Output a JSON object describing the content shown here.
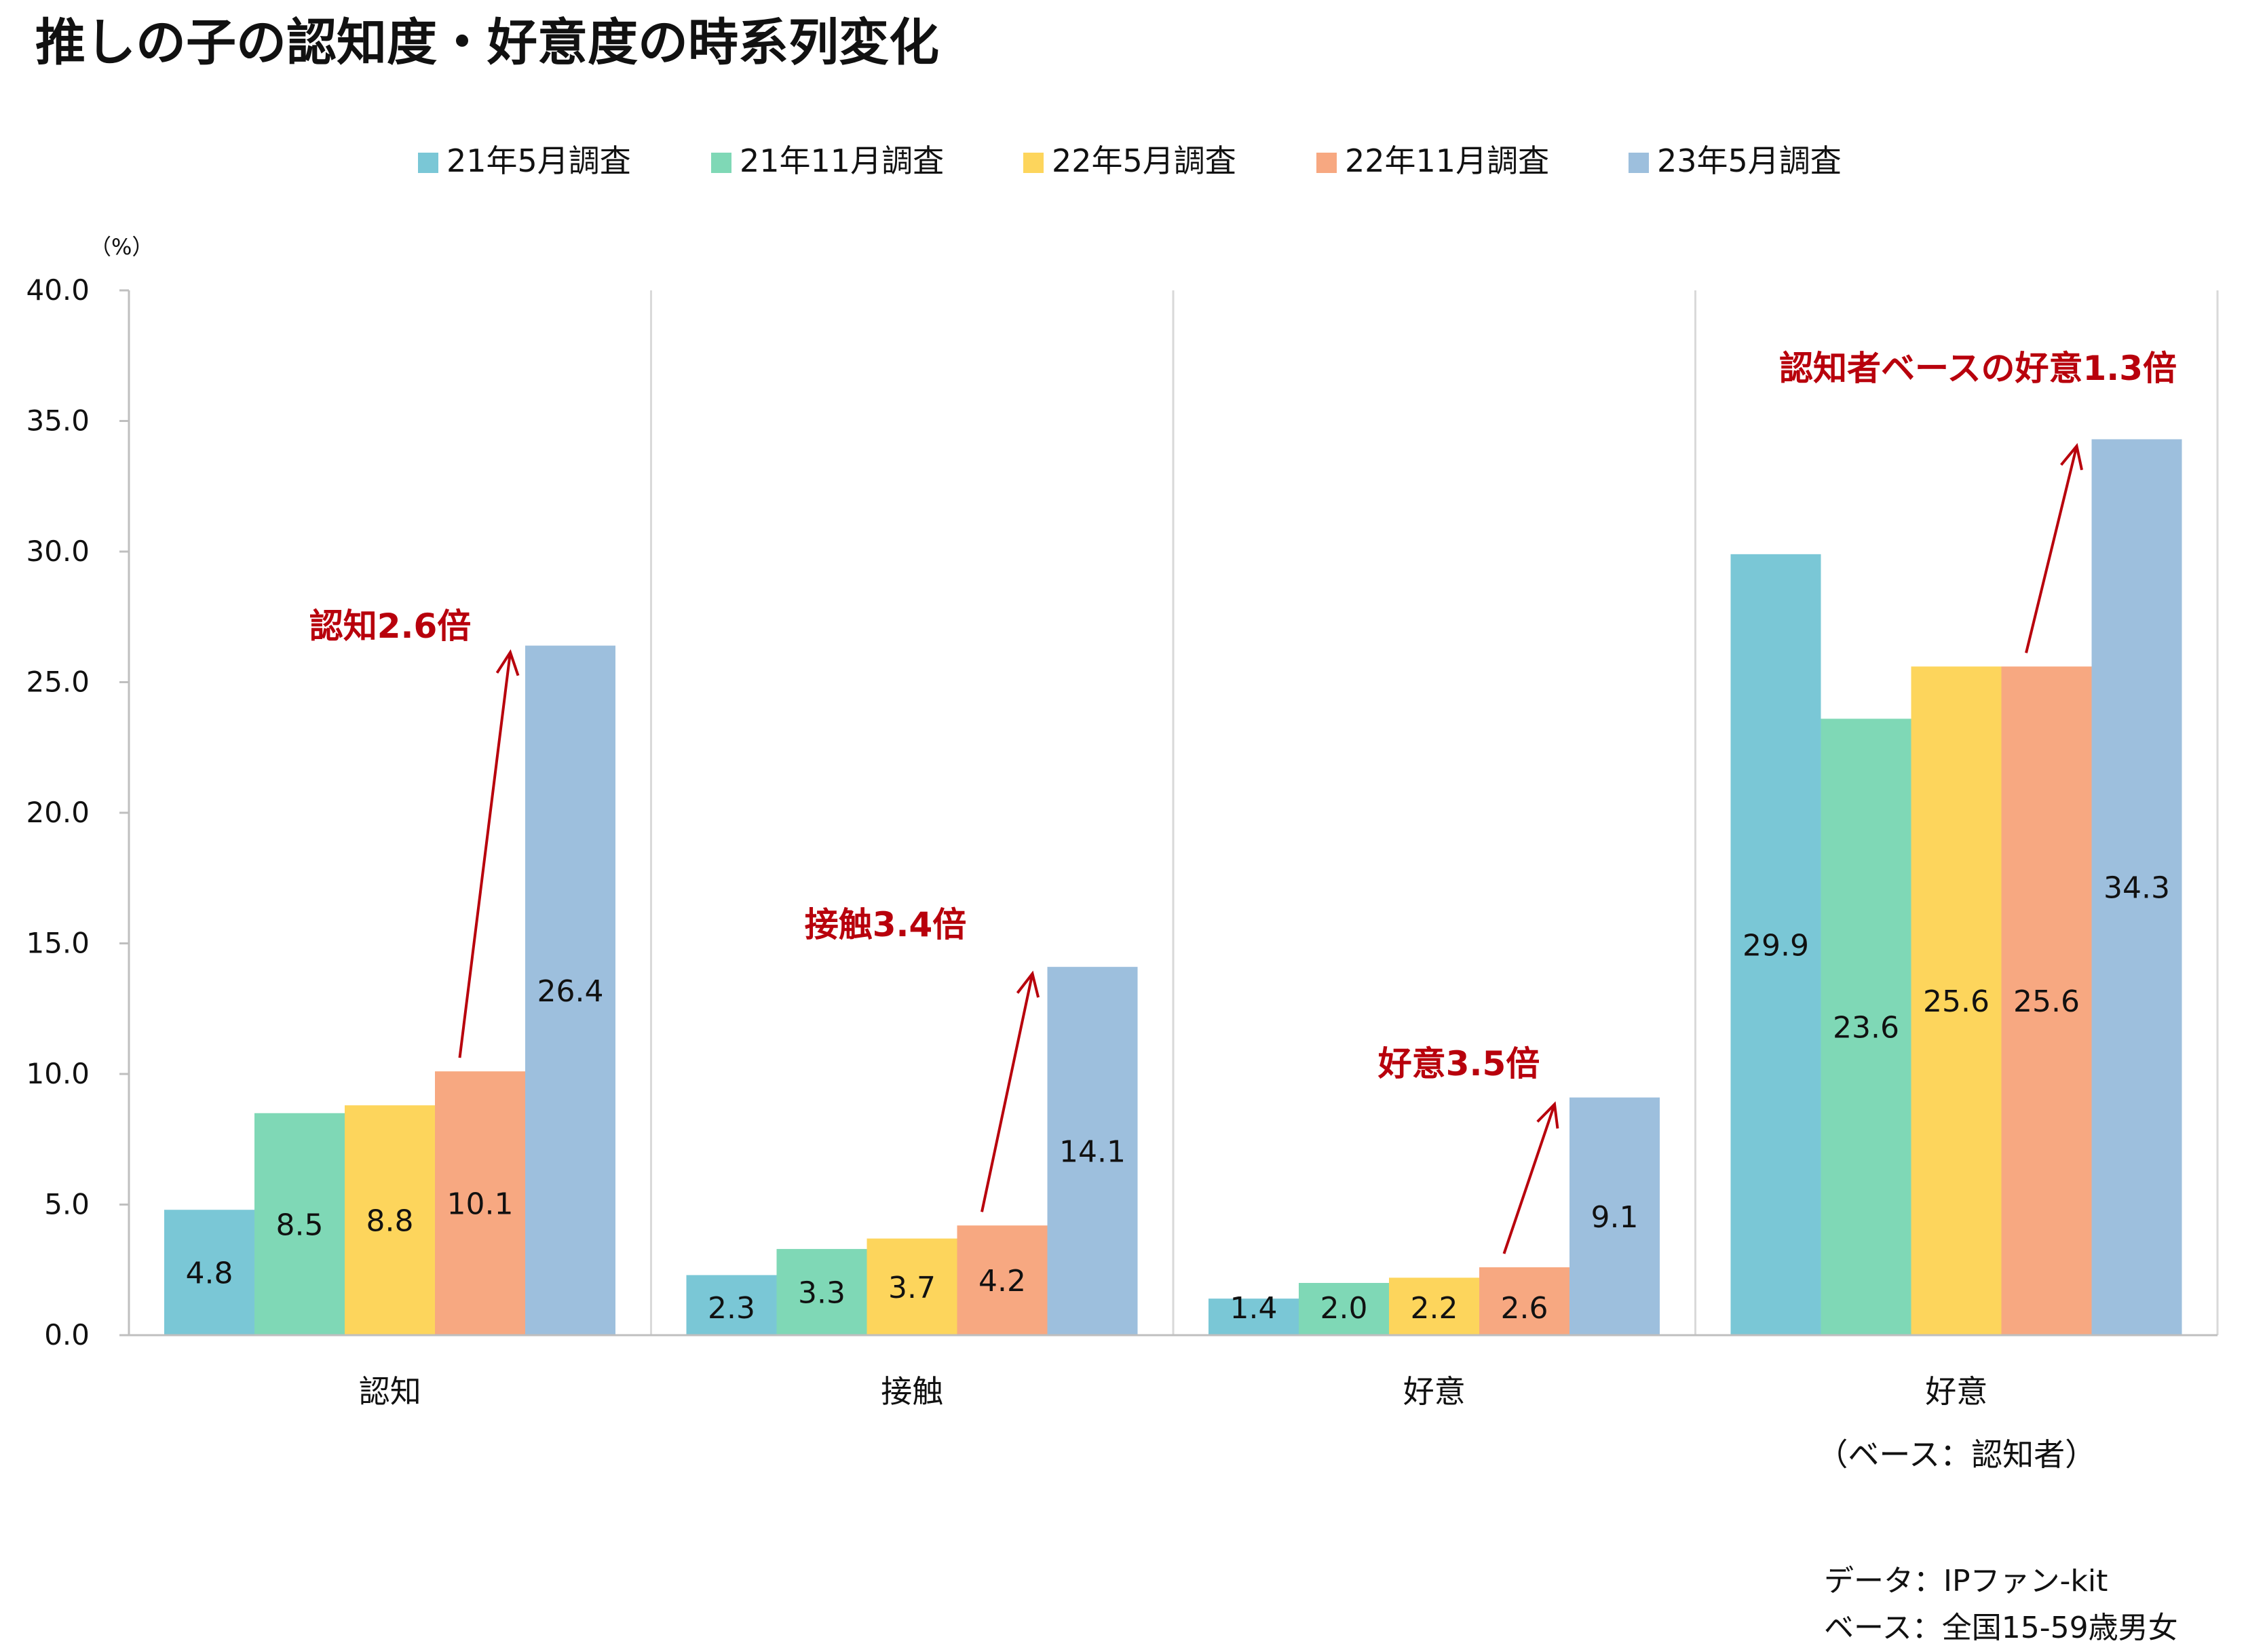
{
  "colors": {
    "series": [
      "#7ac7d6",
      "#7fd8b6",
      "#fdd55c",
      "#f7a881",
      "#9dbfdd"
    ],
    "annotation": "#b8000c",
    "axis": "#bfbfbf",
    "separator": "#d9d9d9",
    "text": "#111111"
  },
  "chart_data": {
    "type": "bar",
    "title": "推しの子の認知度・好意度の時系列変化",
    "unit_label": "（%）",
    "ylim": [
      0,
      40
    ],
    "yticks": [
      "0.0",
      "5.0",
      "10.0",
      "15.0",
      "20.0",
      "25.0",
      "30.0",
      "35.0",
      "40.0"
    ],
    "grid": false,
    "legend_position": "top",
    "categories": [
      "認知",
      "接触",
      "好意",
      "好意"
    ],
    "category_sublabels": [
      "",
      "",
      "",
      "（ベース：認知者）"
    ],
    "series": [
      {
        "name": "21年5月調査",
        "values": [
          4.8,
          2.3,
          1.4,
          29.9
        ]
      },
      {
        "name": "21年11月調査",
        "values": [
          8.5,
          3.3,
          2.0,
          23.6
        ]
      },
      {
        "name": "22年5月調査",
        "values": [
          8.8,
          3.7,
          2.2,
          25.6
        ]
      },
      {
        "name": "22年11月調査",
        "values": [
          10.1,
          4.2,
          2.6,
          25.6
        ]
      },
      {
        "name": "23年5月調査",
        "values": [
          26.4,
          14.1,
          9.1,
          34.3
        ]
      }
    ],
    "value_labels": [
      [
        "4.8",
        "2.3",
        "1.4",
        "29.9"
      ],
      [
        "8.5",
        "3.3",
        "2.0",
        "23.6"
      ],
      [
        "8.8",
        "3.7",
        "2.2",
        "25.6"
      ],
      [
        "10.1",
        "4.2",
        "2.6",
        "25.6"
      ],
      [
        "26.4",
        "14.1",
        "9.1",
        "34.3"
      ]
    ],
    "annotations": [
      {
        "group": 0,
        "text": "認知2.6倍"
      },
      {
        "group": 1,
        "text": "接触3.4倍"
      },
      {
        "group": 2,
        "text": "好意3.5倍"
      },
      {
        "group": 3,
        "text": "認知者ベースの好意1.3倍"
      }
    ]
  },
  "notes": {
    "source": "データ：IPファン-kit",
    "base": "ベース：全国15-59歳男女"
  }
}
